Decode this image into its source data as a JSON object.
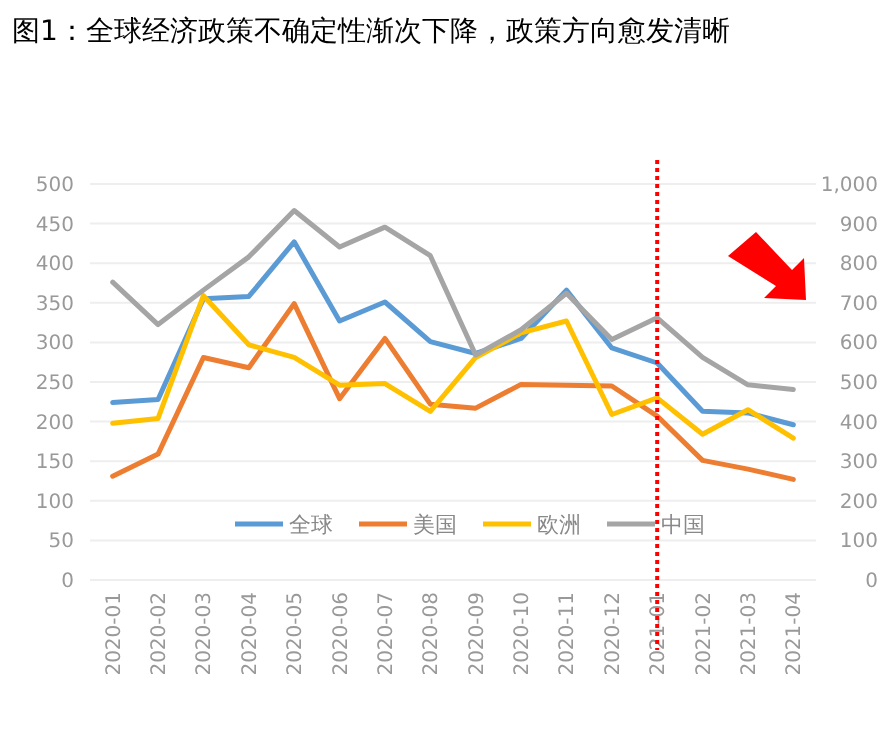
{
  "chart_data": {
    "type": "line",
    "title": "图1：全球经济政策不确定性渐次下降，政策方向愈发清晰",
    "categories": [
      "2020-01",
      "2020-02",
      "2020-03",
      "2020-04",
      "2020-05",
      "2020-06",
      "2020-07",
      "2020-08",
      "2020-09",
      "2020-10",
      "2020-11",
      "2020-12",
      "2021-01",
      "2021-02",
      "2021-03",
      "2021-04"
    ],
    "series": [
      {
        "name": "全球",
        "color": "#5b9bd5",
        "values": [
          224,
          228,
          355,
          358,
          427,
          327,
          351,
          301,
          286,
          305,
          366,
          293,
          274,
          213,
          211,
          196
        ]
      },
      {
        "name": "美国",
        "color": "#ed7d31",
        "values": [
          131,
          159,
          281,
          268,
          349,
          229,
          305,
          222,
          217,
          247,
          246,
          245,
          207,
          151,
          140,
          127
        ]
      },
      {
        "name": "欧洲",
        "color": "#ffc000",
        "values": [
          198,
          204,
          359,
          297,
          281,
          246,
          248,
          213,
          281,
          312,
          327,
          209,
          230,
          184,
          215,
          179
        ]
      },
      {
        "name": "中国",
        "color": "#a5a5a5",
        "axis": "y2",
        "values": [
          752,
          645,
          732,
          816,
          933,
          841,
          891,
          819,
          568,
          632,
          724,
          607,
          662,
          562,
          493,
          481
        ]
      }
    ],
    "ylim": [
      0,
      500
    ],
    "yticks": [
      0,
      50,
      100,
      150,
      200,
      250,
      300,
      350,
      400,
      450,
      500
    ],
    "y2lim": [
      0,
      1000
    ],
    "y2ticks": [
      0,
      100,
      200,
      300,
      400,
      500,
      600,
      700,
      800,
      900,
      {
        "value": 1000,
        "label": "1,000"
      }
    ],
    "grid": "y",
    "legend": "bottom",
    "marker": "none",
    "line_style": "solid",
    "ref_lines": [
      {
        "axis": "x",
        "value": "2021-01",
        "color": "#ff0000",
        "line_style": "dotted"
      }
    ]
  }
}
